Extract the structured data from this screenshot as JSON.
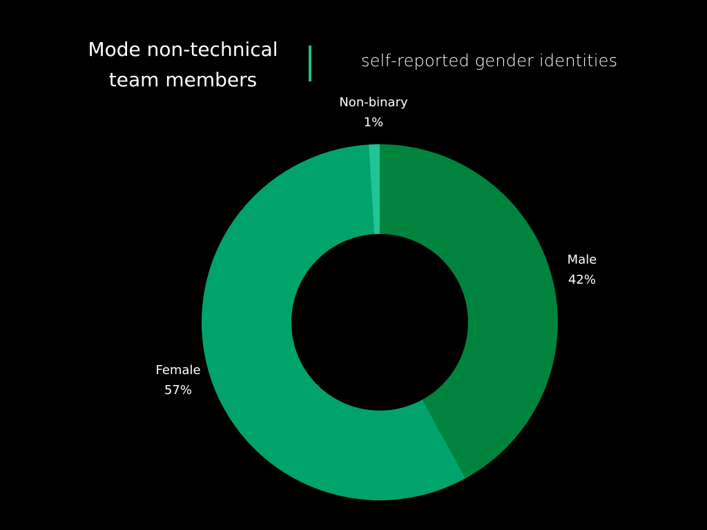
{
  "header": {
    "title_line1": "Mode non-technical",
    "title_line2": "team members",
    "subtitle": "self-reported gender identities",
    "divider_color": "#1fbf8f"
  },
  "chart_data": {
    "type": "pie",
    "variant": "donut",
    "title": "Mode non-technical team members",
    "subtitle": "self-reported gender identities",
    "categories": [
      "Male",
      "Female",
      "Non-binary"
    ],
    "values": [
      42,
      57,
      1
    ],
    "value_labels": [
      "42%",
      "57%",
      "1%"
    ],
    "colors": [
      "#00843d",
      "#00a36c",
      "#20c497"
    ],
    "start_angle_deg": 0,
    "direction": "clockwise",
    "legend": "none (direct labels)",
    "center": [
      550,
      467
    ],
    "outer_radius": 258,
    "inner_radius": 128
  },
  "labels": [
    {
      "name": "Male",
      "pct": "42%"
    },
    {
      "name": "Female",
      "pct": "57%"
    },
    {
      "name": "Non-binary",
      "pct": "1%"
    }
  ]
}
